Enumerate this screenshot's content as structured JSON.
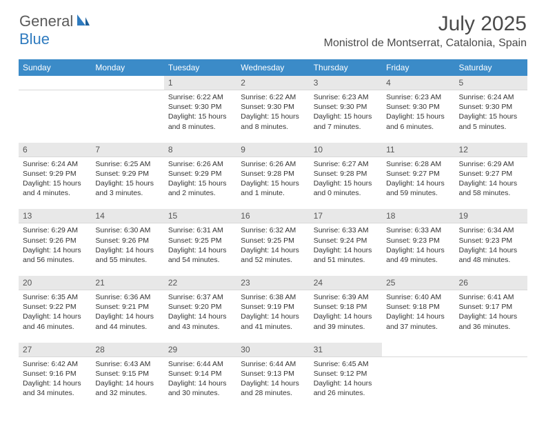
{
  "logo": {
    "general": "General",
    "blue": "Blue"
  },
  "title": "July 2025",
  "location": "Monistrol de Montserrat, Catalonia, Spain",
  "colors": {
    "header_bg": "#3b8bc8",
    "header_text": "#ffffff",
    "daynum_bg": "#e8e8e8",
    "text": "#333333",
    "logo_gray": "#5a5a5a",
    "logo_blue": "#2f7bbf"
  },
  "weekdays": [
    "Sunday",
    "Monday",
    "Tuesday",
    "Wednesday",
    "Thursday",
    "Friday",
    "Saturday"
  ],
  "weeks": [
    {
      "nums": [
        "",
        "",
        "1",
        "2",
        "3",
        "4",
        "5"
      ],
      "cells": [
        {
          "sunrise": "",
          "sunset": "",
          "daylight": ""
        },
        {
          "sunrise": "",
          "sunset": "",
          "daylight": ""
        },
        {
          "sunrise": "Sunrise: 6:22 AM",
          "sunset": "Sunset: 9:30 PM",
          "daylight": "Daylight: 15 hours and 8 minutes."
        },
        {
          "sunrise": "Sunrise: 6:22 AM",
          "sunset": "Sunset: 9:30 PM",
          "daylight": "Daylight: 15 hours and 8 minutes."
        },
        {
          "sunrise": "Sunrise: 6:23 AM",
          "sunset": "Sunset: 9:30 PM",
          "daylight": "Daylight: 15 hours and 7 minutes."
        },
        {
          "sunrise": "Sunrise: 6:23 AM",
          "sunset": "Sunset: 9:30 PM",
          "daylight": "Daylight: 15 hours and 6 minutes."
        },
        {
          "sunrise": "Sunrise: 6:24 AM",
          "sunset": "Sunset: 9:30 PM",
          "daylight": "Daylight: 15 hours and 5 minutes."
        }
      ]
    },
    {
      "nums": [
        "6",
        "7",
        "8",
        "9",
        "10",
        "11",
        "12"
      ],
      "cells": [
        {
          "sunrise": "Sunrise: 6:24 AM",
          "sunset": "Sunset: 9:29 PM",
          "daylight": "Daylight: 15 hours and 4 minutes."
        },
        {
          "sunrise": "Sunrise: 6:25 AM",
          "sunset": "Sunset: 9:29 PM",
          "daylight": "Daylight: 15 hours and 3 minutes."
        },
        {
          "sunrise": "Sunrise: 6:26 AM",
          "sunset": "Sunset: 9:29 PM",
          "daylight": "Daylight: 15 hours and 2 minutes."
        },
        {
          "sunrise": "Sunrise: 6:26 AM",
          "sunset": "Sunset: 9:28 PM",
          "daylight": "Daylight: 15 hours and 1 minute."
        },
        {
          "sunrise": "Sunrise: 6:27 AM",
          "sunset": "Sunset: 9:28 PM",
          "daylight": "Daylight: 15 hours and 0 minutes."
        },
        {
          "sunrise": "Sunrise: 6:28 AM",
          "sunset": "Sunset: 9:27 PM",
          "daylight": "Daylight: 14 hours and 59 minutes."
        },
        {
          "sunrise": "Sunrise: 6:29 AM",
          "sunset": "Sunset: 9:27 PM",
          "daylight": "Daylight: 14 hours and 58 minutes."
        }
      ]
    },
    {
      "nums": [
        "13",
        "14",
        "15",
        "16",
        "17",
        "18",
        "19"
      ],
      "cells": [
        {
          "sunrise": "Sunrise: 6:29 AM",
          "sunset": "Sunset: 9:26 PM",
          "daylight": "Daylight: 14 hours and 56 minutes."
        },
        {
          "sunrise": "Sunrise: 6:30 AM",
          "sunset": "Sunset: 9:26 PM",
          "daylight": "Daylight: 14 hours and 55 minutes."
        },
        {
          "sunrise": "Sunrise: 6:31 AM",
          "sunset": "Sunset: 9:25 PM",
          "daylight": "Daylight: 14 hours and 54 minutes."
        },
        {
          "sunrise": "Sunrise: 6:32 AM",
          "sunset": "Sunset: 9:25 PM",
          "daylight": "Daylight: 14 hours and 52 minutes."
        },
        {
          "sunrise": "Sunrise: 6:33 AM",
          "sunset": "Sunset: 9:24 PM",
          "daylight": "Daylight: 14 hours and 51 minutes."
        },
        {
          "sunrise": "Sunrise: 6:33 AM",
          "sunset": "Sunset: 9:23 PM",
          "daylight": "Daylight: 14 hours and 49 minutes."
        },
        {
          "sunrise": "Sunrise: 6:34 AM",
          "sunset": "Sunset: 9:23 PM",
          "daylight": "Daylight: 14 hours and 48 minutes."
        }
      ]
    },
    {
      "nums": [
        "20",
        "21",
        "22",
        "23",
        "24",
        "25",
        "26"
      ],
      "cells": [
        {
          "sunrise": "Sunrise: 6:35 AM",
          "sunset": "Sunset: 9:22 PM",
          "daylight": "Daylight: 14 hours and 46 minutes."
        },
        {
          "sunrise": "Sunrise: 6:36 AM",
          "sunset": "Sunset: 9:21 PM",
          "daylight": "Daylight: 14 hours and 44 minutes."
        },
        {
          "sunrise": "Sunrise: 6:37 AM",
          "sunset": "Sunset: 9:20 PM",
          "daylight": "Daylight: 14 hours and 43 minutes."
        },
        {
          "sunrise": "Sunrise: 6:38 AM",
          "sunset": "Sunset: 9:19 PM",
          "daylight": "Daylight: 14 hours and 41 minutes."
        },
        {
          "sunrise": "Sunrise: 6:39 AM",
          "sunset": "Sunset: 9:18 PM",
          "daylight": "Daylight: 14 hours and 39 minutes."
        },
        {
          "sunrise": "Sunrise: 6:40 AM",
          "sunset": "Sunset: 9:18 PM",
          "daylight": "Daylight: 14 hours and 37 minutes."
        },
        {
          "sunrise": "Sunrise: 6:41 AM",
          "sunset": "Sunset: 9:17 PM",
          "daylight": "Daylight: 14 hours and 36 minutes."
        }
      ]
    },
    {
      "nums": [
        "27",
        "28",
        "29",
        "30",
        "31",
        "",
        ""
      ],
      "cells": [
        {
          "sunrise": "Sunrise: 6:42 AM",
          "sunset": "Sunset: 9:16 PM",
          "daylight": "Daylight: 14 hours and 34 minutes."
        },
        {
          "sunrise": "Sunrise: 6:43 AM",
          "sunset": "Sunset: 9:15 PM",
          "daylight": "Daylight: 14 hours and 32 minutes."
        },
        {
          "sunrise": "Sunrise: 6:44 AM",
          "sunset": "Sunset: 9:14 PM",
          "daylight": "Daylight: 14 hours and 30 minutes."
        },
        {
          "sunrise": "Sunrise: 6:44 AM",
          "sunset": "Sunset: 9:13 PM",
          "daylight": "Daylight: 14 hours and 28 minutes."
        },
        {
          "sunrise": "Sunrise: 6:45 AM",
          "sunset": "Sunset: 9:12 PM",
          "daylight": "Daylight: 14 hours and 26 minutes."
        },
        {
          "sunrise": "",
          "sunset": "",
          "daylight": ""
        },
        {
          "sunrise": "",
          "sunset": "",
          "daylight": ""
        }
      ]
    }
  ]
}
